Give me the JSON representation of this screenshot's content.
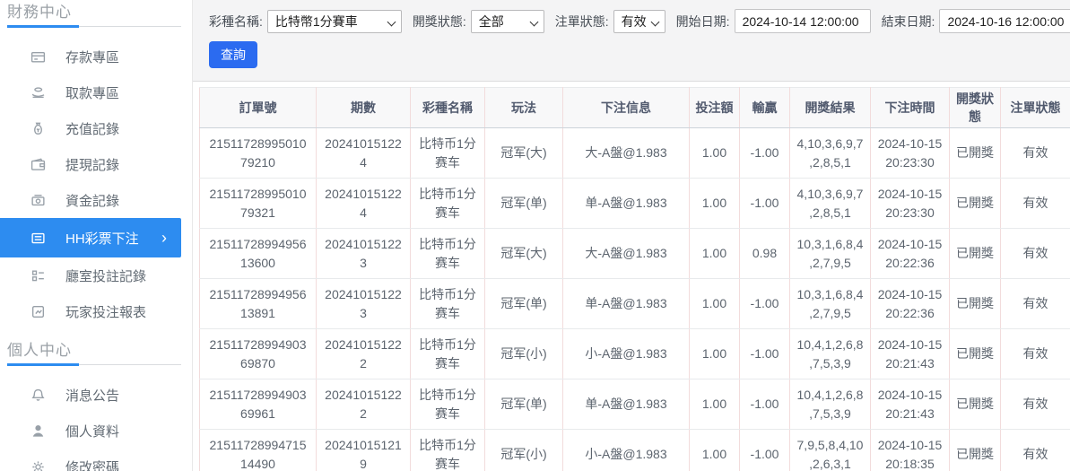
{
  "colors": {
    "accent": "#2d8cf0",
    "search_button": "#2b6bf0",
    "table_vertical_border": "#f2dcdc",
    "active_item_text": "#ffffff"
  },
  "sidebar": {
    "sections": [
      {
        "title": "財務中心",
        "items": [
          {
            "label": "存款專區",
            "icon": "deposit-card-icon",
            "active": false
          },
          {
            "label": "取款專區",
            "icon": "withdraw-hand-icon",
            "active": false
          },
          {
            "label": "充值記錄",
            "icon": "recharge-moneybag-icon",
            "active": false
          },
          {
            "label": "提現記錄",
            "icon": "withdrawal-wallet-icon",
            "active": false
          },
          {
            "label": "資金記錄",
            "icon": "funds-record-icon",
            "active": false
          },
          {
            "label": "HH彩票下注",
            "icon": "lottery-bet-icon",
            "active": true,
            "chevron": "›"
          },
          {
            "label": "廳室投註記錄",
            "icon": "room-bet-record-icon",
            "active": false
          },
          {
            "label": "玩家投注報表",
            "icon": "player-report-icon",
            "active": false
          }
        ]
      },
      {
        "title": "個人中心",
        "items": [
          {
            "label": "消息公告",
            "icon": "announcement-bell-icon",
            "active": false
          },
          {
            "label": "個人資料",
            "icon": "profile-person-icon",
            "active": false
          },
          {
            "label": "修改密碼",
            "icon": "password-gear-icon",
            "active": false
          }
        ]
      }
    ]
  },
  "filters": {
    "lottery_name": {
      "label": "彩種名稱:",
      "value": "比特幣1分賽車"
    },
    "draw_status": {
      "label": "開獎狀態:",
      "value": "全部"
    },
    "bet_status": {
      "label": "注單狀態:",
      "value": "有效"
    },
    "start_date": {
      "label": "開始日期:",
      "value": "2024-10-14 12:00:00"
    },
    "end_date": {
      "label": "結束日期:",
      "value": "2024-10-16 12:00:00"
    },
    "search_button": "查詢"
  },
  "table": {
    "columns": [
      {
        "key": "order-no",
        "label": "訂單號"
      },
      {
        "key": "period",
        "label": "期數"
      },
      {
        "key": "lottery-name",
        "label": "彩種名稱"
      },
      {
        "key": "play-type",
        "label": "玩法"
      },
      {
        "key": "bet-info",
        "label": "下注信息"
      },
      {
        "key": "bet-amount",
        "label": "投注額"
      },
      {
        "key": "win-loss",
        "label": "輸贏"
      },
      {
        "key": "draw-result",
        "label": "開獎結果"
      },
      {
        "key": "bet-time",
        "label": "下注時間"
      },
      {
        "key": "draw-status",
        "label": "開獎狀態"
      },
      {
        "key": "bet-status",
        "label": "注單狀態"
      }
    ],
    "rows": [
      [
        "2151172899501079210",
        "202410151224",
        "比特币1分赛车",
        "冠军(大)",
        "大-A盤@1.983",
        "1.00",
        "-1.00",
        "4,10,3,6,9,7,2,8,5,1",
        "2024-10-15 20:23:30",
        "已開獎",
        "有效"
      ],
      [
        "2151172899501079321",
        "202410151224",
        "比特币1分赛车",
        "冠军(单)",
        "单-A盤@1.983",
        "1.00",
        "-1.00",
        "4,10,3,6,9,7,2,8,5,1",
        "2024-10-15 20:23:30",
        "已開獎",
        "有效"
      ],
      [
        "2151172899495613600",
        "202410151223",
        "比特币1分赛车",
        "冠军(大)",
        "大-A盤@1.983",
        "1.00",
        "0.98",
        "10,3,1,6,8,4,2,7,9,5",
        "2024-10-15 20:22:36",
        "已開獎",
        "有效"
      ],
      [
        "2151172899495613891",
        "202410151223",
        "比特币1分赛车",
        "冠军(单)",
        "单-A盤@1.983",
        "1.00",
        "-1.00",
        "10,3,1,6,8,4,2,7,9,5",
        "2024-10-15 20:22:36",
        "已開獎",
        "有效"
      ],
      [
        "2151172899490369870",
        "202410151222",
        "比特币1分赛车",
        "冠军(小)",
        "小-A盤@1.983",
        "1.00",
        "-1.00",
        "10,4,1,2,6,8,7,5,3,9",
        "2024-10-15 20:21:43",
        "已開獎",
        "有效"
      ],
      [
        "2151172899490369961",
        "202410151222",
        "比特币1分赛车",
        "冠军(单)",
        "单-A盤@1.983",
        "1.00",
        "-1.00",
        "10,4,1,2,6,8,7,5,3,9",
        "2024-10-15 20:21:43",
        "已開獎",
        "有效"
      ],
      [
        "2151172899471514490",
        "202410151219",
        "比特币1分赛车",
        "冠军(小)",
        "小-A盤@1.983",
        "1.00",
        "-1.00",
        "7,9,5,8,4,10,2,6,3,1",
        "2024-10-15 20:18:35",
        "已開獎",
        "有效"
      ]
    ]
  }
}
